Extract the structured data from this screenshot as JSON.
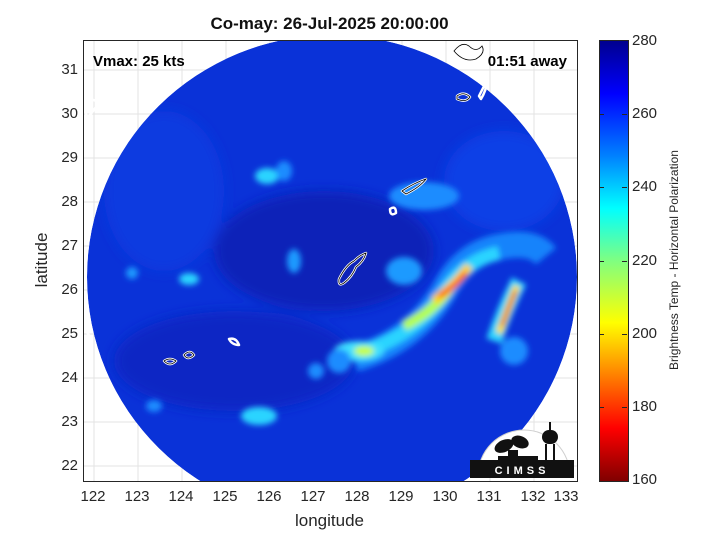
{
  "title": "Co-may: 26-Jul-2025 20:00:00",
  "annotations": {
    "vmax": "Vmax: 25 kts",
    "time_away": "01:51 away"
  },
  "axes": {
    "xlabel": "longitude",
    "ylabel": "latitude",
    "xlim": [
      121.9,
      133.1
    ],
    "ylim": [
      21.7,
      31.65
    ],
    "xticks": [
      "122",
      "123",
      "124",
      "125",
      "126",
      "127",
      "128",
      "129",
      "130",
      "131",
      "132",
      "133"
    ],
    "yticks": [
      "22",
      "23",
      "24",
      "25",
      "26",
      "27",
      "28",
      "29",
      "30",
      "31"
    ],
    "grid": true
  },
  "colorbar": {
    "label": "Brightness Temp - Horizontal Polarization",
    "range": [
      160,
      280
    ],
    "ticks": [
      "280",
      "260",
      "240",
      "220",
      "200",
      "180",
      "160"
    ],
    "colormap": "jet"
  },
  "logo": {
    "text": "CIMSS"
  },
  "colors": {
    "background_blue": "#0a32d8",
    "cold_core": "#0a1fa8"
  }
}
